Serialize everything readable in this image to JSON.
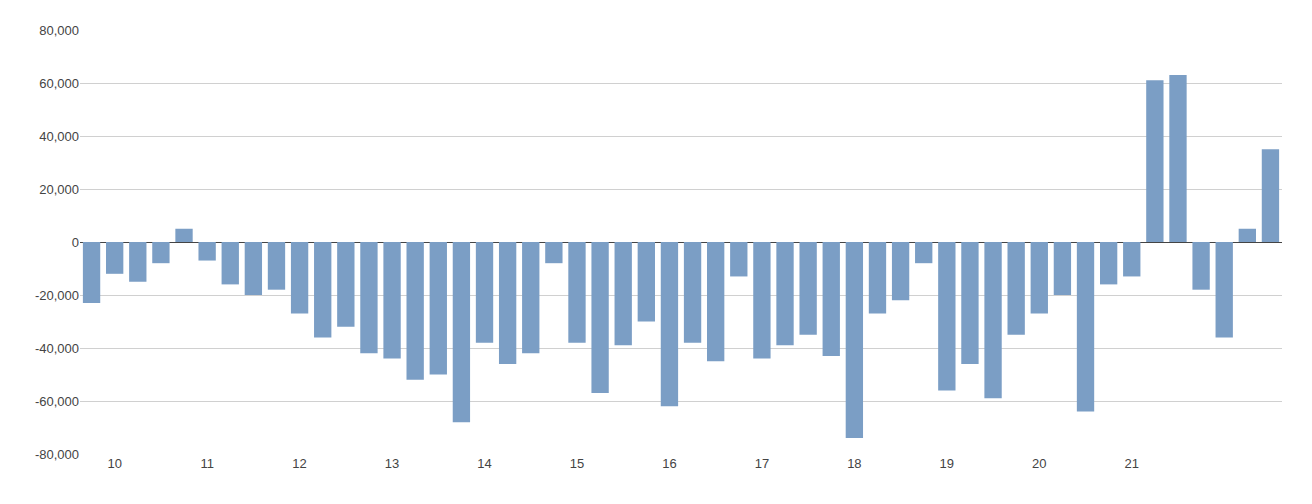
{
  "chart_data": {
    "type": "bar",
    "categories": [
      null,
      "10",
      null,
      null,
      null,
      "11",
      null,
      null,
      null,
      "12",
      null,
      null,
      null,
      "13",
      null,
      null,
      null,
      "14",
      null,
      null,
      null,
      "15",
      null,
      null,
      null,
      "16",
      null,
      null,
      null,
      "17",
      null,
      null,
      null,
      "18",
      null,
      null,
      null,
      "19",
      null,
      null,
      null,
      "20",
      null,
      null,
      null,
      "21",
      null,
      null,
      null,
      null,
      null,
      null
    ],
    "values": [
      -23000,
      -12000,
      -15000,
      -8000,
      5000,
      -7000,
      -16000,
      -20000,
      -18000,
      -27000,
      -36000,
      -32000,
      -42000,
      -44000,
      -52000,
      -50000,
      -68000,
      -38000,
      -46000,
      -42000,
      -8000,
      -38000,
      -57000,
      -39000,
      -30000,
      -62000,
      -38000,
      -45000,
      -13000,
      -44000,
      -39000,
      -35000,
      -43000,
      -74000,
      -27000,
      -22000,
      -8000,
      -56000,
      -46000,
      -59000,
      -35000,
      -27000,
      -20000,
      -64000,
      -16000,
      -13000,
      61000,
      63000,
      -18000,
      -36000,
      5000,
      35000
    ],
    "color": "#7B9EC5",
    "ylim": [
      -80000,
      80000
    ],
    "yticks": [
      {
        "value": -80000,
        "label": "-80,000"
      },
      {
        "value": -60000,
        "label": "-60,000"
      },
      {
        "value": -40000,
        "label": "-40,000"
      },
      {
        "value": -20000,
        "label": "-20,000"
      },
      0,
      {
        "value": 20000,
        "label": "20,000"
      },
      {
        "value": 40000,
        "label": "40,000"
      },
      {
        "value": 60000,
        "label": "60,000"
      },
      {
        "value": 80000,
        "label": "80,000"
      }
    ],
    "grid": true
  }
}
